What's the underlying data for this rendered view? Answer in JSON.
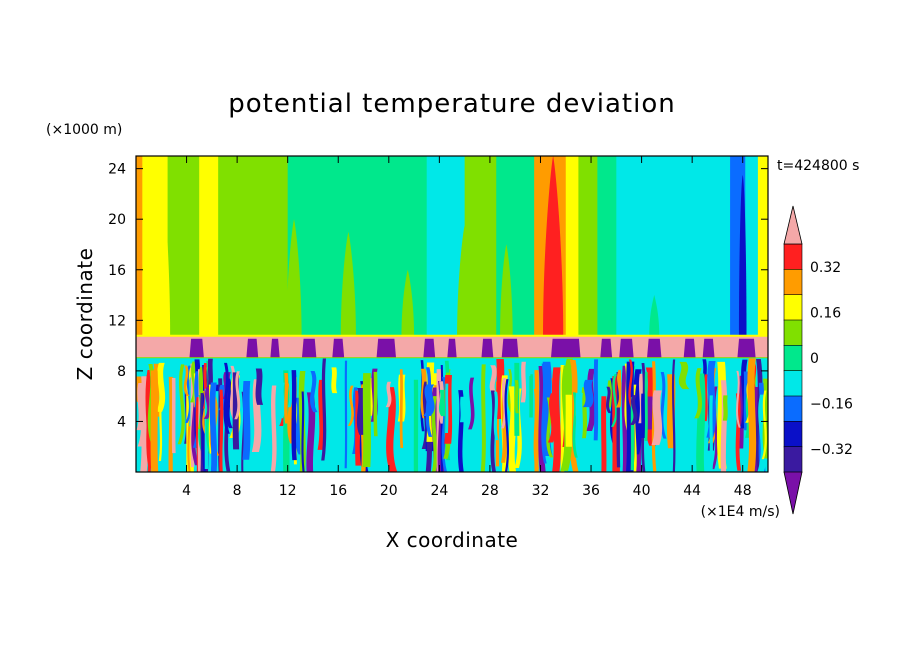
{
  "chart_data": {
    "type": "heatmap",
    "title": "potential temperature deviation",
    "xlabel": "X coordinate",
    "ylabel": "Z coordinate",
    "x_unit": "(×1E4 m/s)",
    "y_unit": "(×1000 m)",
    "time_label": "t=424800 s",
    "xlim": [
      0,
      50
    ],
    "ylim": [
      0,
      25
    ],
    "x_ticks": [
      4,
      8,
      12,
      16,
      20,
      24,
      28,
      32,
      36,
      40,
      44,
      48
    ],
    "y_ticks": [
      4,
      8,
      12,
      16,
      20,
      24
    ],
    "colorbar": {
      "levels": [
        -0.4,
        -0.32,
        -0.24,
        -0.16,
        -0.08,
        0,
        0.08,
        0.16,
        0.24,
        0.32,
        0.4
      ],
      "labels": [
        "0.32",
        "0.16",
        "0",
        "−0.16",
        "−0.32"
      ],
      "label_values": [
        0.32,
        0.16,
        0,
        -0.16,
        -0.32
      ],
      "colors": [
        "#7a10a8",
        "#3a1aa0",
        "#0a10c8",
        "#0a6cff",
        "#00e8e8",
        "#00e88c",
        "#80e000",
        "#ffff00",
        "#ff9c00",
        "#ff2020",
        "#f4a8a8"
      ],
      "extend": "both"
    },
    "regions": {
      "upper_layer": {
        "z_range": [
          10.7,
          25
        ],
        "tone": "near-zero positive, mostly green/cyan"
      },
      "tropopause_band": {
        "z_range": [
          9.0,
          10.7
        ],
        "value": 0.4
      },
      "convective_layer": {
        "z_range": [
          0,
          9.0
        ],
        "tone": "strongly mixed"
      }
    },
    "columns": [
      {
        "x": [
          0,
          0.5
        ],
        "value": 0.24
      },
      {
        "x": [
          0.5,
          2.5
        ],
        "value": 0.16
      },
      {
        "x": [
          2.5,
          5
        ],
        "value": 0.08
      },
      {
        "x": [
          5,
          6.5
        ],
        "value": 0.16
      },
      {
        "x": [
          6.5,
          12
        ],
        "value": 0.08
      },
      {
        "x": [
          12,
          23
        ],
        "value": 0.0
      },
      {
        "x": [
          23,
          26
        ],
        "value": -0.08
      },
      {
        "x": [
          26,
          28.5
        ],
        "value": 0.08
      },
      {
        "x": [
          28.5,
          31.5
        ],
        "value": 0.0
      },
      {
        "x": [
          31.5,
          34
        ],
        "value": 0.24
      },
      {
        "x": [
          34,
          35
        ],
        "value": 0.16
      },
      {
        "x": [
          35,
          36.5
        ],
        "value": 0.08
      },
      {
        "x": [
          36.5,
          38
        ],
        "value": 0.0
      },
      {
        "x": [
          38,
          47
        ],
        "value": -0.08
      },
      {
        "x": [
          47,
          48.2
        ],
        "value": -0.16
      },
      {
        "x": [
          48.2,
          49.2
        ],
        "value": -0.08
      },
      {
        "x": [
          49.2,
          50
        ],
        "value": 0.16
      }
    ],
    "plumes": [
      {
        "x": 5.7,
        "z_top": 23.5,
        "w": 1.0,
        "value": 0.16
      },
      {
        "x": 2.0,
        "z_top": 24.0,
        "w": 1.4,
        "value": 0.16
      },
      {
        "x": 12.5,
        "z_top": 20.0,
        "w": 1.2,
        "value": 0.08
      },
      {
        "x": 16.8,
        "z_top": 19.0,
        "w": 1.2,
        "value": 0.08
      },
      {
        "x": 21.5,
        "z_top": 16.0,
        "w": 1.0,
        "value": 0.08
      },
      {
        "x": 26.0,
        "z_top": 19.5,
        "w": 1.2,
        "value": 0.08
      },
      {
        "x": 29.3,
        "z_top": 18.0,
        "w": 1.0,
        "value": 0.08
      },
      {
        "x": 33.0,
        "z_top": 25.0,
        "w": 1.6,
        "value": 0.32
      },
      {
        "x": 41.0,
        "z_top": 14.0,
        "w": 0.8,
        "value": 0.0
      },
      {
        "x": 48.0,
        "z_top": 23.5,
        "w": 0.6,
        "value": -0.24
      }
    ],
    "band_cells": [
      {
        "x": 4.8,
        "w": 1.2,
        "value": -0.4
      },
      {
        "x": 9.2,
        "w": 1.0,
        "value": -0.4
      },
      {
        "x": 11.0,
        "w": 0.8,
        "value": -0.4
      },
      {
        "x": 13.7,
        "w": 1.2,
        "value": -0.4
      },
      {
        "x": 16.0,
        "w": 1.0,
        "value": -0.4
      },
      {
        "x": 19.8,
        "w": 1.6,
        "value": -0.4
      },
      {
        "x": 23.2,
        "w": 1.0,
        "value": -0.4
      },
      {
        "x": 25.0,
        "w": 0.8,
        "value": -0.4
      },
      {
        "x": 27.8,
        "w": 1.0,
        "value": -0.4
      },
      {
        "x": 29.6,
        "w": 1.4,
        "value": -0.4
      },
      {
        "x": 34.0,
        "w": 2.4,
        "value": -0.4
      },
      {
        "x": 37.2,
        "w": 1.0,
        "value": -0.4
      },
      {
        "x": 38.8,
        "w": 1.2,
        "value": -0.4
      },
      {
        "x": 41.0,
        "w": 1.2,
        "value": -0.4
      },
      {
        "x": 43.8,
        "w": 1.0,
        "value": -0.4
      },
      {
        "x": 45.3,
        "w": 1.0,
        "value": -0.4
      },
      {
        "x": 48.3,
        "w": 1.5,
        "value": -0.4
      }
    ]
  }
}
